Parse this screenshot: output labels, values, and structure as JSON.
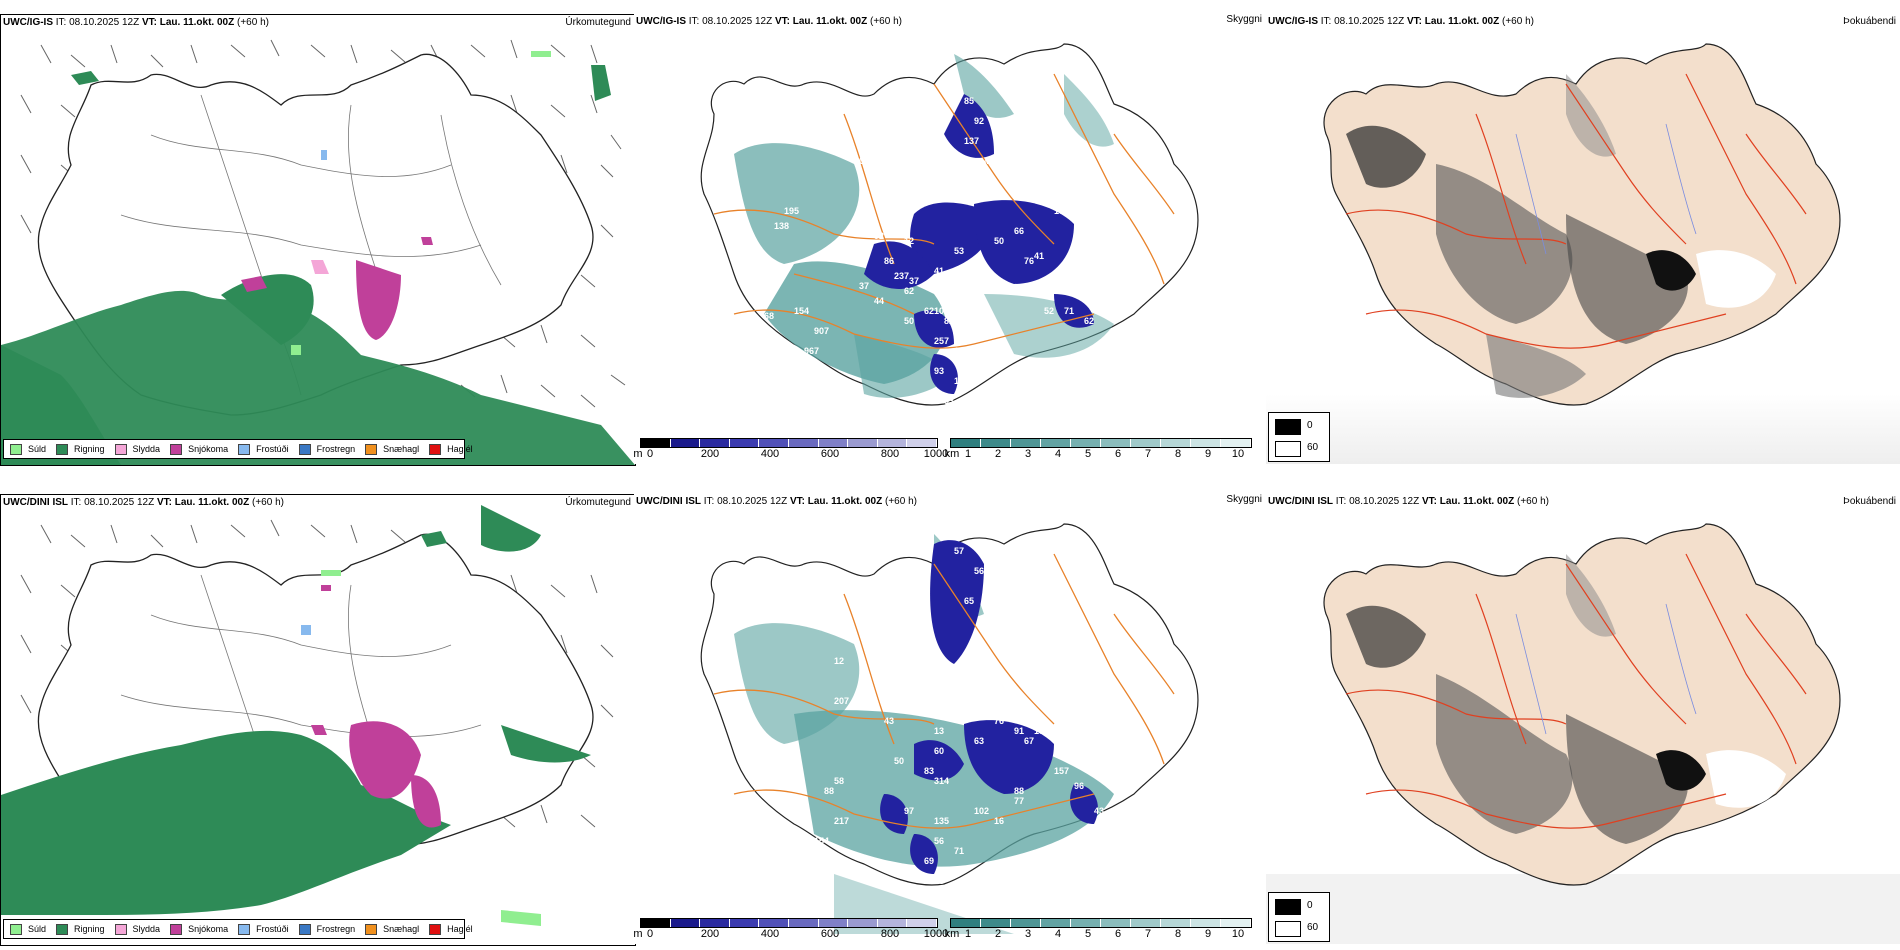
{
  "rows": [
    {
      "precip": {
        "model": "UWC/IG-IS",
        "it_label": "IT:",
        "it_value": "08.10.2025 12Z",
        "vt_label": "VT:",
        "vt_value": "Lau. 11.okt. 00Z",
        "lead": "(+60 h)",
        "right": "Úrkomutegund"
      },
      "cloud": {
        "model": "UWC/IG-IS",
        "it_label": "IT:",
        "it_value": "08.10.2025 12Z",
        "vt_label": "VT:",
        "vt_value": "Lau. 11.okt. 00Z",
        "lead": "(+60 h)",
        "right": "Skyggni",
        "cloud_base_labels": [
          "195",
          "138",
          "45",
          "68",
          "907",
          "967",
          "154",
          "464",
          "37",
          "44",
          "37",
          "41",
          "53",
          "50",
          "66",
          "76",
          "41",
          "39",
          "74",
          "71",
          "52",
          "62",
          "50",
          "62",
          "105",
          "82",
          "257",
          "107",
          "93",
          "178",
          "40",
          "33",
          "90",
          "85",
          "92",
          "137",
          "46",
          "48",
          "12",
          "13",
          "53",
          "56",
          "76",
          "12",
          "86",
          "237",
          "62",
          "92"
        ]
      },
      "fog": {
        "model": "UWC/IG-IS",
        "it_label": "IT:",
        "it_value": "08.10.2025 12Z",
        "vt_label": "VT:",
        "vt_value": "Lau. 11.okt. 00Z",
        "lead": "(+60 h)",
        "right": "Þokuábendi",
        "legend_hi": "0",
        "legend_lo": "60"
      }
    },
    {
      "precip": {
        "model": "UWC/DINI ISL",
        "it_label": "IT:",
        "it_value": "08.10.2025 12Z",
        "vt_label": "VT:",
        "vt_value": "Lau. 11.okt. 00Z",
        "lead": "(+60 h)",
        "right": "Úrkomutegund"
      },
      "cloud": {
        "model": "UWC/DINI ISL",
        "it_label": "IT:",
        "it_value": "08.10.2025 12Z",
        "vt_label": "VT:",
        "vt_value": "Lau. 11.okt. 00Z",
        "lead": "(+60 h)",
        "right": "Skyggni",
        "cloud_base_labels": [
          "12",
          "57",
          "56",
          "65",
          "74",
          "207",
          "50",
          "83",
          "63",
          "76",
          "91",
          "67",
          "138",
          "157",
          "96",
          "88",
          "77",
          "102",
          "16",
          "97",
          "135",
          "56",
          "71",
          "69",
          "38",
          "37",
          "43",
          "217",
          "154",
          "88",
          "58",
          "13",
          "10",
          "60",
          "314",
          "43"
        ]
      },
      "fog": {
        "model": "UWC/DINI ISL",
        "it_label": "IT:",
        "it_value": "08.10.2025 12Z",
        "vt_label": "VT:",
        "vt_value": "Lau. 11.okt. 00Z",
        "lead": "(+60 h)",
        "right": "Þokuábendi",
        "legend_hi": "0",
        "legend_lo": "60"
      }
    }
  ],
  "precip_legend": [
    {
      "label": "Súld",
      "color": "#90ee90"
    },
    {
      "label": "Rigning",
      "color": "#2e8b57"
    },
    {
      "label": "Slydda",
      "color": "#f4a6d7"
    },
    {
      "label": "Snjókoma",
      "color": "#c0409a"
    },
    {
      "label": "Frostúði",
      "color": "#87b9ee"
    },
    {
      "label": "Frostregn",
      "color": "#3a78c4"
    },
    {
      "label": "Snæhagl",
      "color": "#f0901e"
    },
    {
      "label": "Haglél",
      "color": "#e01010"
    }
  ],
  "cloud_base_bar": {
    "unit": "m",
    "ticks": [
      "0",
      "200",
      "400",
      "600",
      "800",
      "1000"
    ],
    "colors": [
      "#000000",
      "#1a1a8c",
      "#2a2aa0",
      "#3b3bb0",
      "#5050b8",
      "#6a6ac0",
      "#8080c8",
      "#9a9ad0",
      "#b4b4dc",
      "#d0d0ea"
    ]
  },
  "visibility_bar": {
    "unit": "km",
    "ticks": [
      "1",
      "2",
      "3",
      "4",
      "5",
      "6",
      "7",
      "8",
      "9",
      "10"
    ],
    "colors": [
      "#2f7f7f",
      "#3d8a8a",
      "#4f9696",
      "#62a3a3",
      "#76b0b0",
      "#8bbdbd",
      "#a0caca",
      "#b6d7d7",
      "#cce4e4",
      "#e3f1f1"
    ]
  },
  "colors": {
    "rain": "#2e8b57",
    "drizzle": "#90ee90",
    "snow": "#c0409a",
    "sleet": "#f4a6d7",
    "freezing_drizzle": "#87b9ee",
    "roads_orange": "#e8822a",
    "roads_red": "#e04020",
    "low_cloud": "#2222a0",
    "visibility": "#5aa3a0",
    "land_beige": "#f3dfcc"
  }
}
